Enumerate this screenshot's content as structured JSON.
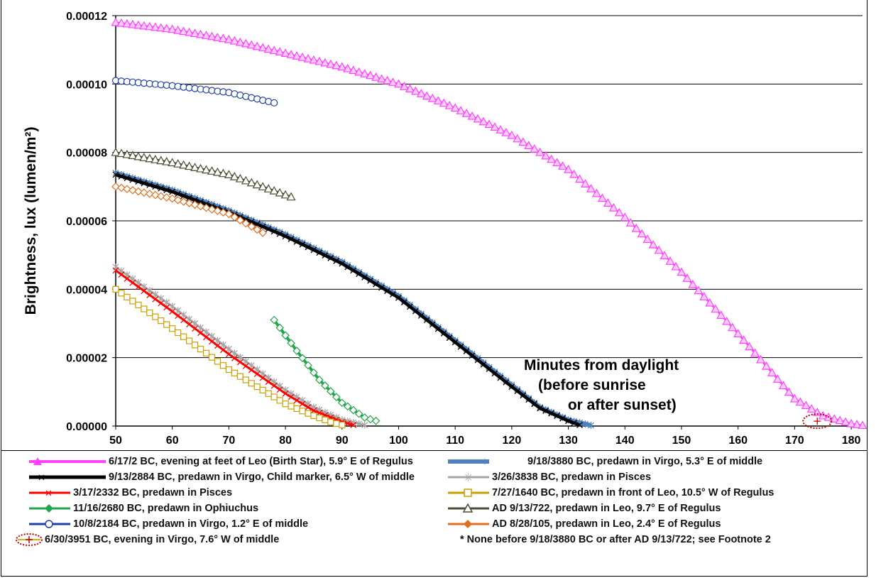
{
  "chart_data": {
    "type": "line",
    "title": "",
    "xlabel": "",
    "ylabel": "Brightness, lux (lumen/m²)",
    "annotation": "Minutes from daylight\n(before sunrise\n or after sunset)",
    "xlim": [
      50,
      182
    ],
    "ylim": [
      0,
      0.00012
    ],
    "xticks": [
      50,
      60,
      70,
      80,
      90,
      100,
      110,
      120,
      130,
      140,
      150,
      160,
      170,
      180
    ],
    "xtick_labels": [
      "50",
      "60",
      "70",
      "80",
      "90",
      "100",
      "110",
      "120",
      "130",
      "140",
      "150",
      "160",
      "170",
      "180"
    ],
    "yticks": [
      0,
      2e-05,
      4e-05,
      6e-05,
      8e-05,
      0.0001,
      0.00012
    ],
    "ytick_labels": [
      "0.00000",
      "0.00002",
      "0.00004",
      "0.00006",
      "0.00008",
      "0.00010",
      "0.00012"
    ],
    "grid": "horizontal",
    "legend_placement": "bottom",
    "series": [
      {
        "name": "6/17/2 BC, evening at feet of Leo (Birth Star), 5.9° E of Regulus",
        "color": "#ff40ff",
        "marker": "triangle",
        "x": [
          50,
          60,
          70,
          80,
          90,
          100,
          110,
          120,
          130,
          140,
          150,
          160,
          170,
          175,
          180,
          182
        ],
        "y": [
          0.000118,
          0.000116,
          0.000113,
          0.000109,
          0.000105,
          0.0001,
          9.3e-05,
          8.5e-05,
          7.5e-05,
          6.1e-05,
          4.5e-05,
          2.7e-05,
          8e-06,
          3e-06,
          7e-07,
          2e-07
        ]
      },
      {
        "name": "9/18/3880 BC, predawn in Virgo, 5.3° E of middle",
        "color": "#4f81bd",
        "marker": "star",
        "x": [
          50,
          60,
          70,
          80,
          90,
          100,
          110,
          120,
          125,
          130,
          134
        ],
        "y": [
          7.4e-05,
          6.9e-05,
          6.3e-05,
          5.6e-05,
          4.8e-05,
          3.8e-05,
          2.5e-05,
          1.2e-05,
          5.5e-06,
          1.8e-06,
          2e-07
        ]
      },
      {
        "name": "9/13/2884 BC, predawn in Virgo, Child marker, 6.5° W of middle",
        "color": "#000000",
        "marker": "x",
        "x": [
          50,
          60,
          70,
          80,
          90,
          100,
          110,
          120,
          125,
          130,
          132
        ],
        "y": [
          7.35e-05,
          6.85e-05,
          6.25e-05,
          5.55e-05,
          4.75e-05,
          3.75e-05,
          2.45e-05,
          1.15e-05,
          5.2e-06,
          1.5e-06,
          3e-07
        ]
      },
      {
        "name": "3/26/3838 BC, predawn in Pisces",
        "color": "#a6a6a6",
        "marker": "asterisk",
        "x": [
          50,
          60,
          70,
          80,
          85,
          90,
          94
        ],
        "y": [
          4.65e-05,
          3.5e-05,
          2.25e-05,
          1.05e-05,
          5.5e-06,
          1.8e-06,
          3e-07
        ]
      },
      {
        "name": "3/17/2332 BC, predawn in Pisces",
        "color": "#ff0000",
        "marker": "x",
        "x": [
          50,
          60,
          70,
          80,
          85,
          90,
          92
        ],
        "y": [
          4.55e-05,
          3.35e-05,
          2.1e-05,
          9.5e-06,
          4.5e-06,
          1.2e-06,
          3e-07
        ]
      },
      {
        "name": "7/27/1640 BC, predawn in front of Leo, 10.5° W of Regulus",
        "color": "#c9a000",
        "marker": "square",
        "x": [
          50,
          60,
          70,
          80,
          85,
          88,
          90
        ],
        "y": [
          4e-05,
          2.85e-05,
          1.65e-05,
          6.5e-06,
          3e-06,
          1.2e-06,
          3e-07
        ]
      },
      {
        "name": "11/16/2680 BC, predawn in Ophiuchus",
        "color": "#21a64a",
        "marker": "diamond",
        "x": [
          78,
          82,
          86,
          90,
          94,
          96
        ],
        "y": [
          3.1e-05,
          2.2e-05,
          1.35e-05,
          6.8e-06,
          2.5e-06,
          1.5e-06
        ]
      },
      {
        "name": "AD 9/13/722, predawn in Leo, 9.7° E of Regulus",
        "color": "#4d4d33",
        "marker": "triangle",
        "x": [
          50,
          60,
          70,
          81
        ],
        "y": [
          8e-05,
          7.7e-05,
          7.35e-05,
          6.7e-05
        ]
      },
      {
        "name": "10/8/2184 BC, predawn in Virgo, 1.2° E of middle",
        "color": "#1f3fa8",
        "marker": "circle",
        "x": [
          50,
          60,
          70,
          78
        ],
        "y": [
          0.000101,
          9.95e-05,
          9.75e-05,
          9.45e-05
        ]
      },
      {
        "name": "AD 8/28/105, predawn in Leo, 2.4° E of Regulus",
        "color": "#e07020",
        "marker": "diamond",
        "x": [
          50,
          60,
          70,
          76
        ],
        "y": [
          7e-05,
          6.65e-05,
          6.2e-05,
          5.65e-05
        ]
      },
      {
        "name": "6/30/3951 BC, evening in Virgo, 7.6° W of middle",
        "color": "#cc0000",
        "marker": "plus-circled",
        "x": [
          174
        ],
        "y": [
          8e-07
        ]
      }
    ]
  },
  "legend": {
    "items": [
      {
        "label": "6/17/2 BC, evening at feet of Leo (Birth Star), 5.9° E of Regulus"
      },
      {
        "label": "9/18/3880 BC, predawn in Virgo, 5.3° E of middle"
      },
      {
        "label": "9/13/2884 BC, predawn in Virgo, Child marker, 6.5° W of middle"
      },
      {
        "label": "3/26/3838 BC, predawn in Pisces"
      },
      {
        "label": "3/17/2332 BC, predawn in Pisces"
      },
      {
        "label": "7/27/1640 BC, predawn in front of Leo, 10.5° W of Regulus"
      },
      {
        "label": "11/16/2680 BC, predawn in Ophiuchus"
      },
      {
        "label": "AD 9/13/722, predawn in Leo, 9.7° E of Regulus"
      },
      {
        "label": "10/8/2184 BC, predawn in Virgo, 1.2° E of middle"
      },
      {
        "label": "AD 8/28/105, predawn in Leo, 2.4° E of Regulus"
      },
      {
        "label": "6/30/3951 BC, evening in Virgo, 7.6° W of middle"
      }
    ],
    "footnote": "*   None before 9/18/3880 BC or after AD 9/13/722; see Footnote 2"
  }
}
